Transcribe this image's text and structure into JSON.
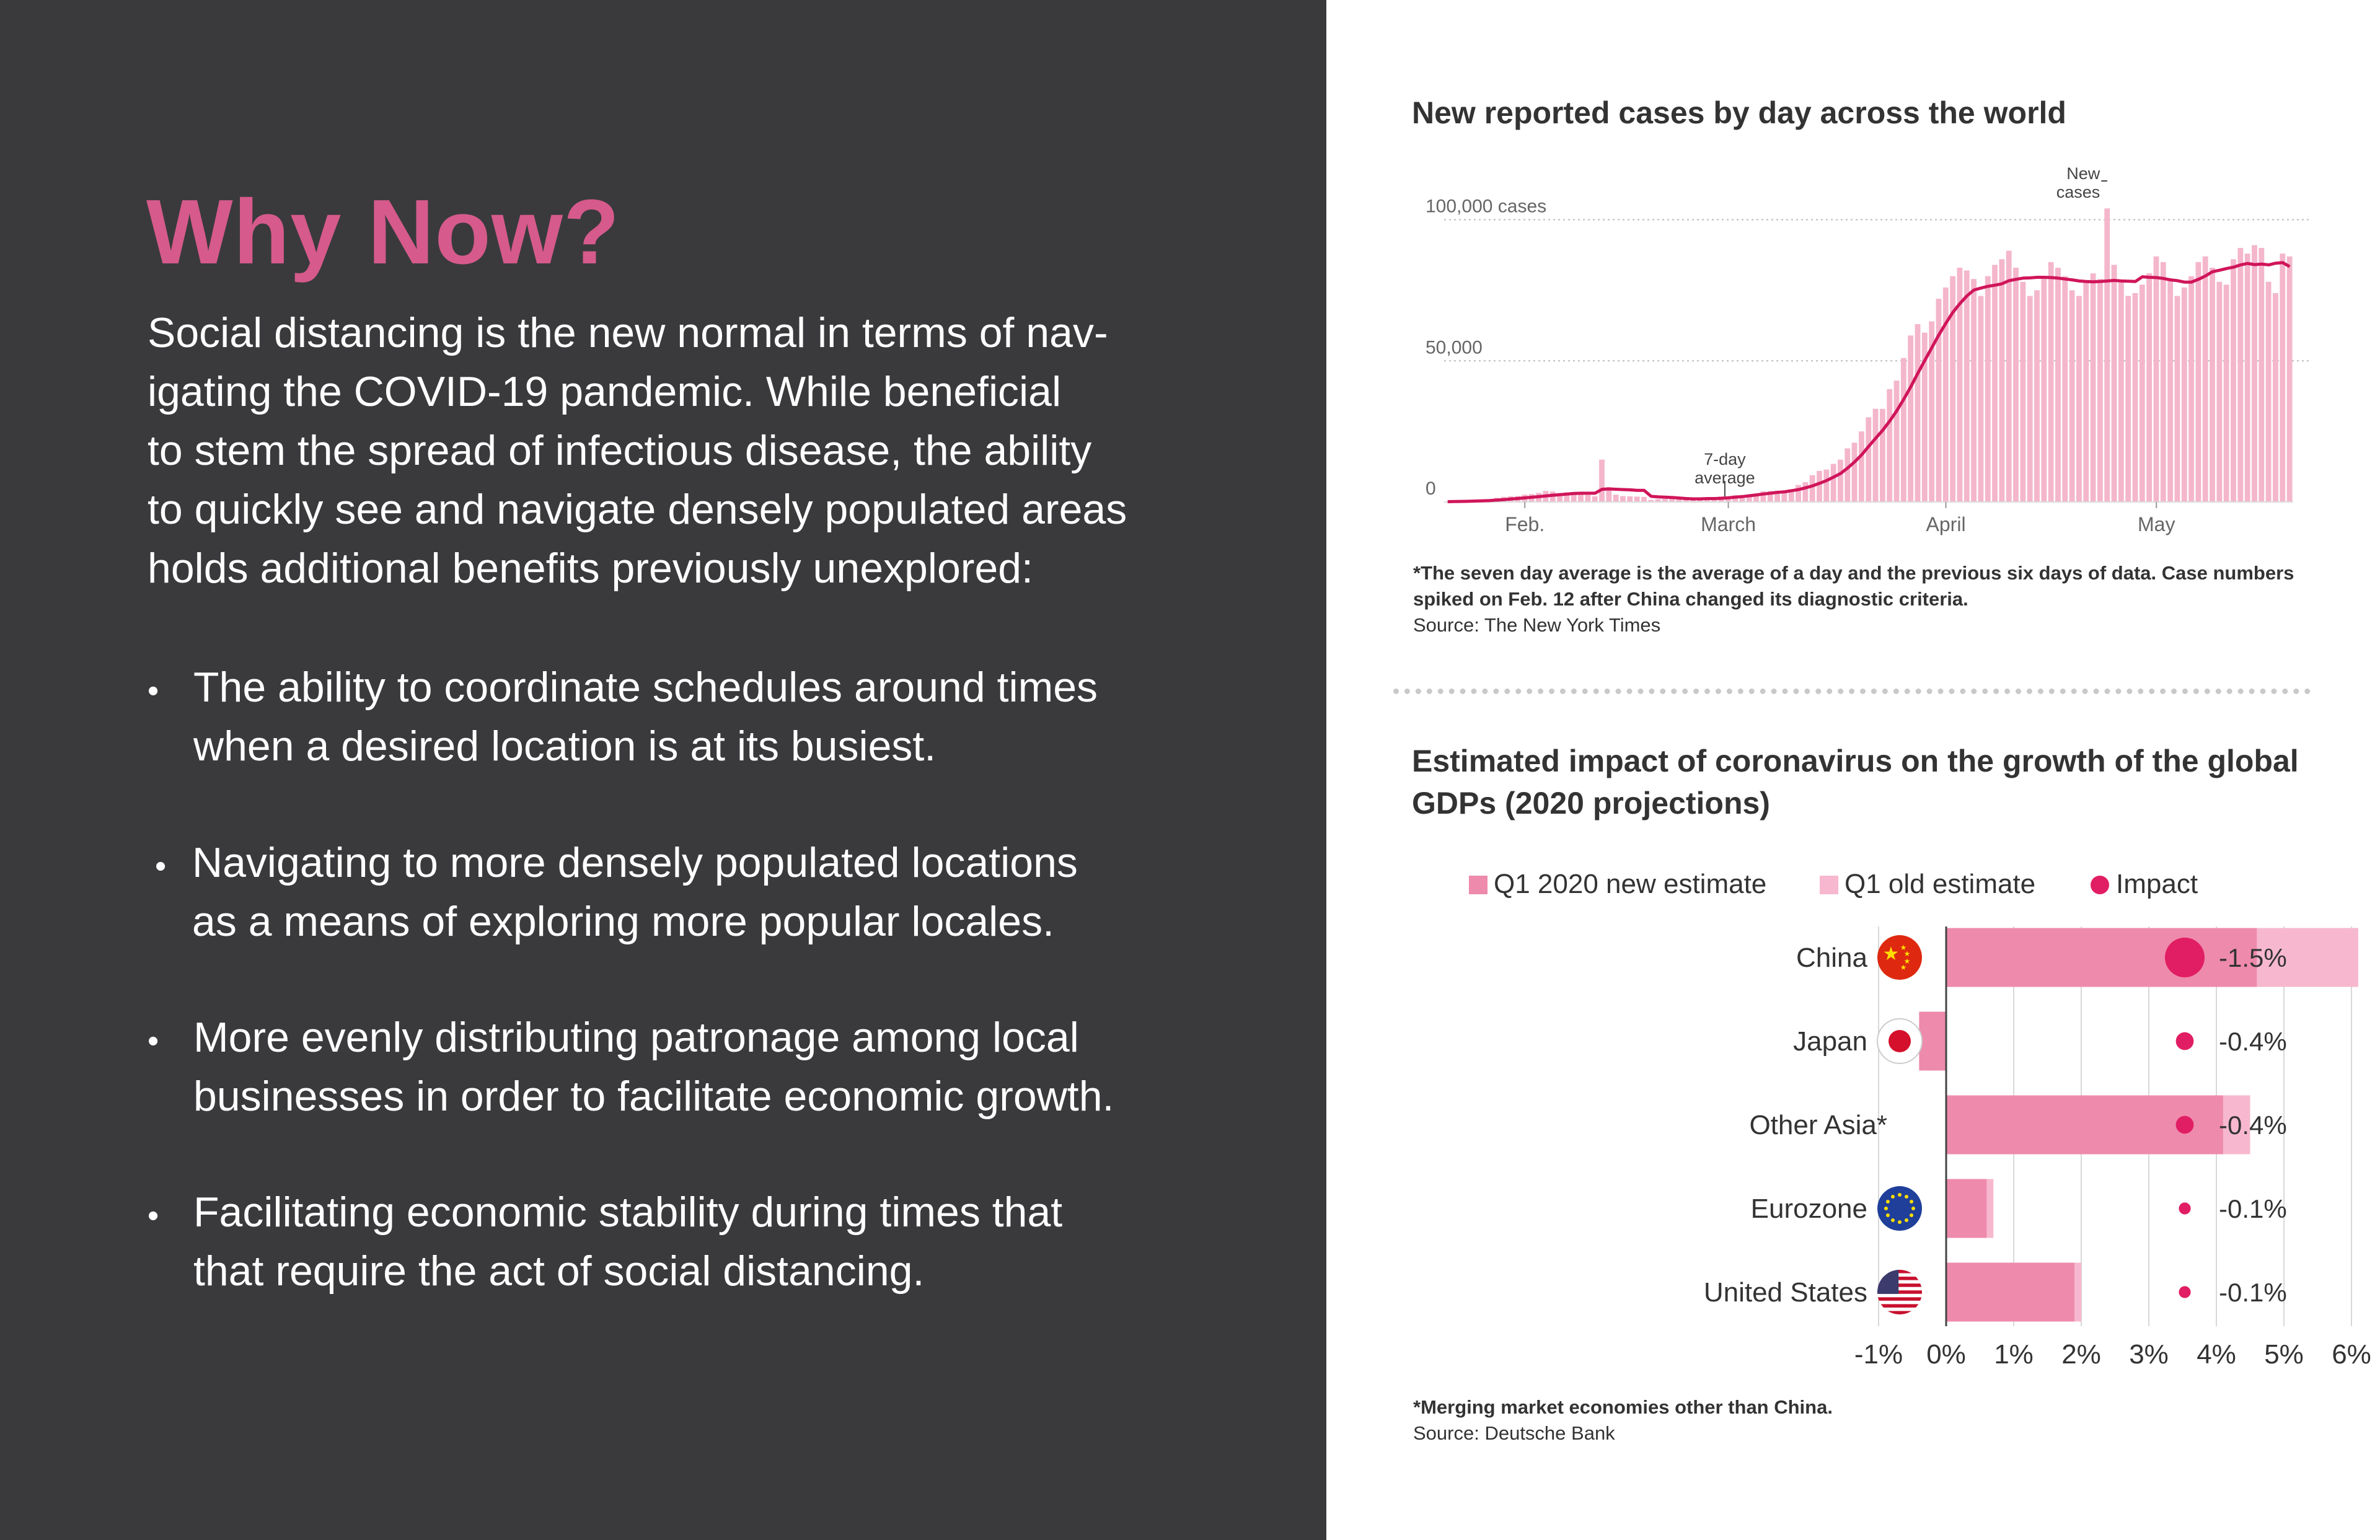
{
  "left": {
    "title": "Why Now?",
    "intro_lines": [
      "Social distancing is the new normal in terms of nav-",
      "igating the COVID-19 pandemic. While beneficial",
      "to stem the spread of infectious disease, the ability",
      "to quickly see and navigate densely populated areas",
      "holds additional benefits previously unexplored:"
    ],
    "bullets": [
      [
        "The ability to coordinate schedules around times",
        "when a desired location is at its busiest."
      ],
      [
        "Navigating to more densely populated locations",
        "as a means of exploring more popular locales."
      ],
      [
        "More evenly distributing patronage among local",
        "businesses in order to facilitate economic growth."
      ],
      [
        "Facilitating economic stability during times that",
        "that require the act of social distancing."
      ]
    ],
    "bullet_symbol": "•"
  },
  "chart1_note": {
    "line1": "*The seven day average is the average of a day and the previous six days of data. Case numbers",
    "line2": "spiked on Feb. 12 after China changed its diagnostic criteria.",
    "source": "Source: The New York Times"
  },
  "chart2_note": {
    "line1": "*Merging market economies other than China.",
    "source": "Source: Deutsche Bank"
  },
  "colors": {
    "panel_bg": "#3a3a3c",
    "accent": "#d65a8c",
    "bar_daily": "#f4b6cb",
    "avg_line": "#d0155a",
    "gdp_new": "#ee8aab",
    "gdp_old": "#f7b8cf",
    "impact": "#e11e63"
  },
  "chart_data": [
    {
      "type": "bar",
      "title": "New reported cases by day across the world",
      "y_ticks": [
        {
          "value": 0,
          "label": "0"
        },
        {
          "value": 50000,
          "label": "50,000"
        },
        {
          "value": 100000,
          "label": "100,000 cases"
        }
      ],
      "ylim": [
        0,
        105000
      ],
      "x_ticks": [
        {
          "date": "Feb. 1",
          "label": "Feb."
        },
        {
          "date": "Mar. 1",
          "label": "March"
        },
        {
          "date": "Apr. 1",
          "label": "April"
        },
        {
          "date": "May 1",
          "label": "May"
        }
      ],
      "x_range": [
        "Jan. 21",
        "May 21"
      ],
      "annotations": [
        {
          "text_lines": [
            "7-day",
            "average"
          ],
          "target": "7-day average line",
          "near": "Mar. 1"
        },
        {
          "text_lines": [
            "New",
            "cases"
          ],
          "target": "daily bars",
          "near": "Apr. 24"
        }
      ],
      "series": [
        {
          "name": "New cases",
          "kind": "bar",
          "x": [
            "Jan. 21",
            "Jan. 22",
            "Jan. 23",
            "Jan. 24",
            "Jan. 25",
            "Jan. 26",
            "Jan. 27",
            "Jan. 28",
            "Jan. 29",
            "Jan. 30",
            "Jan. 31",
            "Feb. 1",
            "Feb. 2",
            "Feb. 3",
            "Feb. 4",
            "Feb. 5",
            "Feb. 6",
            "Feb. 7",
            "Feb. 8",
            "Feb. 9",
            "Feb. 10",
            "Feb. 11",
            "Feb. 12",
            "Feb. 13",
            "Feb. 14",
            "Feb. 15",
            "Feb. 16",
            "Feb. 17",
            "Feb. 18",
            "Feb. 19",
            "Feb. 20",
            "Feb. 21",
            "Feb. 22",
            "Feb. 23",
            "Feb. 24",
            "Feb. 25",
            "Feb. 26",
            "Feb. 27",
            "Feb. 28",
            "Feb. 29",
            "Mar. 1",
            "Mar. 2",
            "Mar. 3",
            "Mar. 4",
            "Mar. 5",
            "Mar. 6",
            "Mar. 7",
            "Mar. 8",
            "Mar. 9",
            "Mar. 10",
            "Mar. 11",
            "Mar. 12",
            "Mar. 13",
            "Mar. 14",
            "Mar. 15",
            "Mar. 16",
            "Mar. 17",
            "Mar. 18",
            "Mar. 19",
            "Mar. 20",
            "Mar. 21",
            "Mar. 22",
            "Mar. 23",
            "Mar. 24",
            "Mar. 25",
            "Mar. 26",
            "Mar. 27",
            "Mar. 28",
            "Mar. 29",
            "Mar. 30",
            "Mar. 31",
            "Apr. 1",
            "Apr. 2",
            "Apr. 3",
            "Apr. 4",
            "Apr. 5",
            "Apr. 6",
            "Apr. 7",
            "Apr. 8",
            "Apr. 9",
            "Apr. 10",
            "Apr. 11",
            "Apr. 12",
            "Apr. 13",
            "Apr. 14",
            "Apr. 15",
            "Apr. 16",
            "Apr. 17",
            "Apr. 18",
            "Apr. 19",
            "Apr. 20",
            "Apr. 21",
            "Apr. 22",
            "Apr. 23",
            "Apr. 24",
            "Apr. 25",
            "Apr. 26",
            "Apr. 27",
            "Apr. 28",
            "Apr. 29",
            "Apr. 30",
            "May 1",
            "May 2",
            "May 3",
            "May 4",
            "May 5",
            "May 6",
            "May 7",
            "May 8",
            "May 9",
            "May 10",
            "May 11",
            "May 12",
            "May 13",
            "May 14",
            "May 15",
            "May 16",
            "May 17",
            "May 18",
            "May 19",
            "May 20"
          ],
          "values": [
            100,
            200,
            300,
            400,
            700,
            800,
            1000,
            1500,
            1800,
            2000,
            2100,
            2600,
            2800,
            3200,
            3900,
            3700,
            3200,
            3400,
            2700,
            3000,
            2500,
            2000,
            15000,
            5300,
            2600,
            2100,
            2000,
            1900,
            1800,
            700,
            1000,
            1100,
            1500,
            1000,
            800,
            900,
            1000,
            1200,
            1500,
            2000,
            2000,
            2400,
            2000,
            2500,
            2600,
            3800,
            3900,
            4000,
            4000,
            4500,
            6000,
            7000,
            9500,
            11000,
            11500,
            13500,
            15000,
            19000,
            21000,
            25000,
            30000,
            33000,
            33000,
            40000,
            43000,
            51000,
            59000,
            63000,
            60000,
            64000,
            72000,
            76000,
            80000,
            83000,
            82000,
            79000,
            73000,
            80000,
            84000,
            86000,
            89000,
            83000,
            78000,
            73000,
            75000,
            80000,
            85000,
            83000,
            80000,
            75000,
            73000,
            78000,
            81000,
            79000,
            104000,
            84000,
            78000,
            73000,
            74000,
            77000,
            81000,
            87000,
            85000,
            79000,
            73000,
            76000,
            80000,
            85000,
            87000,
            83000,
            78000,
            77000,
            86000,
            90000,
            88000,
            91000,
            90000,
            78000,
            74000,
            88000,
            87000
          ]
        },
        {
          "name": "7-day average",
          "kind": "line",
          "values": [
            100,
            150,
            200,
            250,
            340,
            420,
            510,
            660,
            840,
            1040,
            1230,
            1440,
            1660,
            1890,
            2140,
            2400,
            2600,
            2800,
            3000,
            3100,
            3100,
            3100,
            4500,
            4600,
            4500,
            4400,
            4300,
            4100,
            4100,
            2000,
            1800,
            1700,
            1600,
            1400,
            1200,
            1100,
            1100,
            1200,
            1200,
            1300,
            1500,
            1700,
            1900,
            2200,
            2500,
            2800,
            3100,
            3400,
            3600,
            4000,
            4400,
            5000,
            5700,
            6600,
            7600,
            8800,
            10100,
            12000,
            14200,
            16700,
            19700,
            22600,
            25400,
            28700,
            32300,
            36400,
            40800,
            45600,
            50200,
            54700,
            59200,
            63300,
            67200,
            70300,
            73000,
            75100,
            75800,
            76400,
            76800,
            77300,
            78400,
            78900,
            79300,
            79400,
            79600,
            79600,
            79500,
            79300,
            79000,
            78700,
            78300,
            78100,
            78000,
            78100,
            78300,
            78500,
            78300,
            78200,
            78100,
            79800,
            79600,
            79500,
            79200,
            78700,
            78400,
            77900,
            77900,
            78900,
            80100,
            81600,
            82100,
            82700,
            83200,
            84000,
            84500,
            84100,
            84300,
            84000,
            84600,
            84800,
            83400
          ]
        }
      ]
    },
    {
      "type": "bar",
      "orientation": "horizontal",
      "title": "Estimated impact of coronavirus on the growth of the global GDPs (2020 projections)",
      "categories": [
        "China",
        "Japan",
        "Other Asia*",
        "Eurozone",
        "United States"
      ],
      "country_icons": [
        "china-flag-icon",
        "japan-flag-icon",
        "",
        "eu-flag-icon",
        "us-flag-icon"
      ],
      "series": [
        {
          "name": "Q1 2020 new estimate",
          "values": [
            4.6,
            -0.4,
            4.1,
            0.6,
            1.9
          ]
        },
        {
          "name": "Q1 old estimate",
          "values": [
            6.1,
            0,
            4.5,
            0.7,
            2.0
          ]
        },
        {
          "name": "Impact",
          "values": [
            -1.5,
            -0.4,
            -0.4,
            -0.1,
            -0.1
          ]
        }
      ],
      "impact_labels": [
        "-1.5%",
        "-0.4%",
        "-0.4%",
        "-0.1%",
        "-0.1%"
      ],
      "x_ticks": [
        {
          "value": -1,
          "label": "-1%"
        },
        {
          "value": 0,
          "label": "0%"
        },
        {
          "value": 1,
          "label": "1%"
        },
        {
          "value": 2,
          "label": "2%"
        },
        {
          "value": 3,
          "label": "3%"
        },
        {
          "value": 4,
          "label": "4%"
        },
        {
          "value": 5,
          "label": "5%"
        },
        {
          "value": 6,
          "label": "6%"
        }
      ],
      "xlim": [
        -1,
        6.3
      ],
      "legend_position": "top",
      "grid": true
    }
  ]
}
